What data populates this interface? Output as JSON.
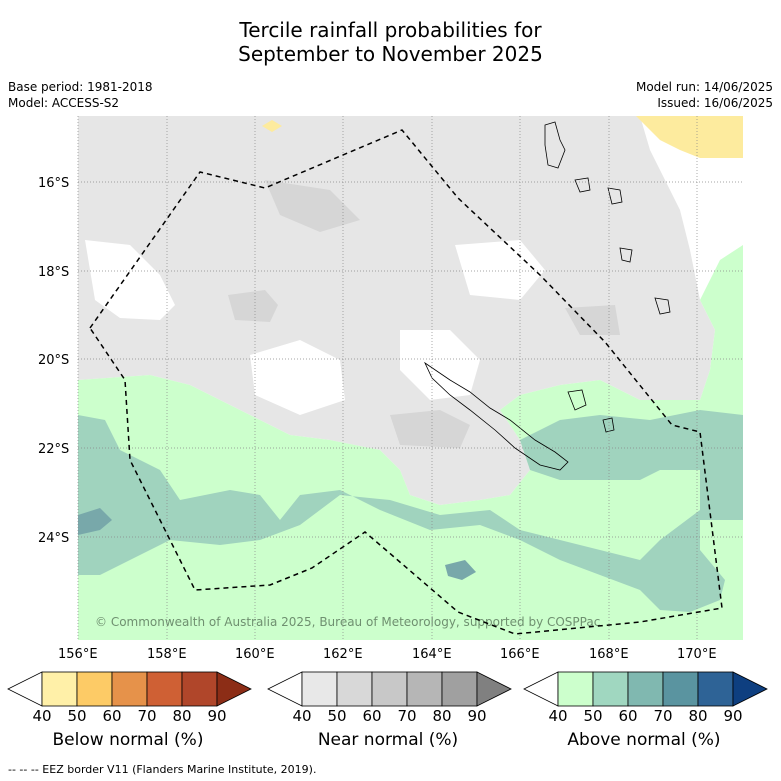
{
  "title_line1": "Tercile rainfall probabilities for",
  "title_line2": "September to November 2025",
  "base_period": "Base period: 1981-2018",
  "model": "Model: ACCESS-S2",
  "model_run": "Model run: 14/06/2025",
  "issued": "Issued: 16/06/2025",
  "lon_labels": [
    "156°E",
    "158°E",
    "160°E",
    "162°E",
    "164°E",
    "166°E",
    "168°E",
    "170°E"
  ],
  "lat_labels": [
    "16°S",
    "18°S",
    "20°S",
    "22°S",
    "24°S"
  ],
  "copyright": "© Commonwealth of Australia 2025, Bureau of Meteorology, supported by COSPPac",
  "colorbars": [
    {
      "label": "Below normal (%)",
      "ticks": [
        "40",
        "50",
        "60",
        "70",
        "80",
        "90"
      ],
      "colors": [
        "#ffffff",
        "#fff0a8",
        "#fdcb66",
        "#e6924a",
        "#cf6034",
        "#b0462a",
        "#8c2d16"
      ]
    },
    {
      "label": "Near normal (%)",
      "ticks": [
        "40",
        "50",
        "60",
        "70",
        "80",
        "90"
      ],
      "colors": [
        "#ffffff",
        "#e8e8e8",
        "#d8d8d8",
        "#c8c8c8",
        "#b6b6b6",
        "#a0a0a0",
        "#808080"
      ]
    },
    {
      "label": "Above normal (%)",
      "ticks": [
        "40",
        "50",
        "60",
        "70",
        "80",
        "90"
      ],
      "colors": [
        "#ffffff",
        "#ccffcc",
        "#a0d7c0",
        "#80b8b0",
        "#5a94a0",
        "#2e6396",
        "#0e3f80"
      ]
    }
  ],
  "footer": "--  --  -- EEZ border V11 (Flanders Marine Institute, 2019).",
  "colors": {
    "above_50": "#ccffcc",
    "above_60": "#a0d3be",
    "above_70": "#78a8aa",
    "near_50": "#e6e6e6",
    "near_60": "#d8d8d8",
    "below_50": "#fdeb9e"
  }
}
